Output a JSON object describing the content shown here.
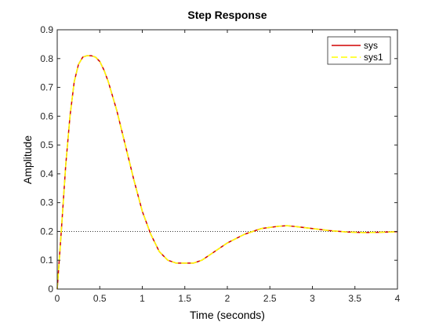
{
  "chart_data": {
    "type": "line",
    "title": "Step Response",
    "xlabel": "Time (seconds)",
    "ylabel": "Amplitude",
    "xlim": [
      0,
      4
    ],
    "ylim": [
      0,
      0.9
    ],
    "xticks": [
      "0",
      "0.5",
      "1",
      "1.5",
      "2",
      "2.5",
      "3",
      "3.5",
      "4"
    ],
    "yticks": [
      "0",
      "0.1",
      "0.2",
      "0.3",
      "0.4",
      "0.5",
      "0.6",
      "0.7",
      "0.8",
      "0.9"
    ],
    "grid": false,
    "legend_position": "top-right",
    "reference_line": {
      "y": 0.2,
      "style": "dotted"
    },
    "series": [
      {
        "name": "sys",
        "color": "#d00000",
        "style": "solid",
        "x": [
          0,
          0.05,
          0.1,
          0.15,
          0.2,
          0.25,
          0.3,
          0.35,
          0.4,
          0.45,
          0.5,
          0.55,
          0.6,
          0.7,
          0.8,
          0.9,
          1.0,
          1.1,
          1.2,
          1.3,
          1.4,
          1.5,
          1.6,
          1.7,
          1.8,
          1.9,
          2.0,
          2.2,
          2.4,
          2.6,
          2.7,
          2.8,
          3.0,
          3.2,
          3.4,
          3.6,
          3.8,
          4.0
        ],
        "y": [
          0,
          0.21,
          0.43,
          0.6,
          0.72,
          0.78,
          0.805,
          0.81,
          0.81,
          0.805,
          0.79,
          0.76,
          0.72,
          0.62,
          0.5,
          0.38,
          0.27,
          0.19,
          0.13,
          0.1,
          0.09,
          0.09,
          0.09,
          0.1,
          0.12,
          0.14,
          0.16,
          0.19,
          0.21,
          0.218,
          0.22,
          0.217,
          0.21,
          0.203,
          0.198,
          0.196,
          0.197,
          0.199
        ]
      },
      {
        "name": "sys1",
        "color": "#ffff00",
        "style": "dashed",
        "x": [
          0,
          0.05,
          0.1,
          0.15,
          0.2,
          0.25,
          0.3,
          0.35,
          0.4,
          0.45,
          0.5,
          0.55,
          0.6,
          0.7,
          0.8,
          0.9,
          1.0,
          1.1,
          1.2,
          1.3,
          1.4,
          1.5,
          1.6,
          1.7,
          1.8,
          1.9,
          2.0,
          2.2,
          2.4,
          2.6,
          2.7,
          2.8,
          3.0,
          3.2,
          3.4,
          3.6,
          3.8,
          4.0
        ],
        "y": [
          0,
          0.21,
          0.43,
          0.6,
          0.72,
          0.78,
          0.805,
          0.81,
          0.81,
          0.805,
          0.79,
          0.76,
          0.72,
          0.62,
          0.5,
          0.38,
          0.27,
          0.19,
          0.13,
          0.1,
          0.09,
          0.09,
          0.09,
          0.1,
          0.12,
          0.14,
          0.16,
          0.19,
          0.21,
          0.218,
          0.22,
          0.217,
          0.21,
          0.203,
          0.198,
          0.196,
          0.197,
          0.199
        ]
      }
    ]
  }
}
